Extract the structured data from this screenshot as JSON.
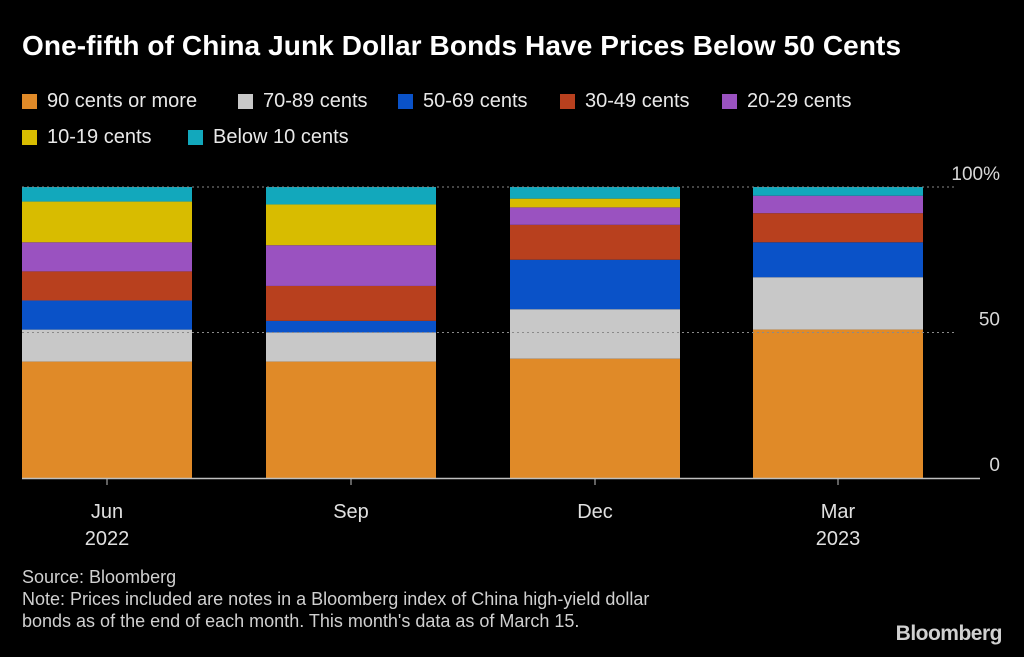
{
  "chart_data": {
    "type": "bar",
    "stacked": true,
    "title": "One-fifth of China Junk Dollar Bonds Have Prices Below 50 Cents",
    "categories": [
      "Jun",
      "Sep",
      "Dec",
      "Mar"
    ],
    "category_sublabels": [
      "2022",
      "",
      "",
      "2023"
    ],
    "series": [
      {
        "name": "90 cents or more",
        "color": "#e08a28",
        "values": [
          40,
          40,
          41,
          51
        ]
      },
      {
        "name": "70-89 cents",
        "color": "#c8c8c8",
        "values": [
          11,
          10,
          17,
          18
        ]
      },
      {
        "name": "50-69 cents",
        "color": "#0a52c8",
        "values": [
          10,
          4,
          17,
          12
        ]
      },
      {
        "name": "30-49 cents",
        "color": "#b8401e",
        "values": [
          10,
          12,
          12,
          10
        ]
      },
      {
        "name": "20-29 cents",
        "color": "#9a52c0",
        "values": [
          10,
          14,
          6,
          6
        ]
      },
      {
        "name": "10-19 cents",
        "color": "#d8bc00",
        "values": [
          14,
          14,
          3,
          0
        ]
      },
      {
        "name": "Below 10 cents",
        "color": "#12a8bc",
        "values": [
          5,
          6,
          4,
          3
        ]
      }
    ],
    "xlabel": "",
    "ylabel": "",
    "ylim": [
      0,
      100
    ],
    "yticks": [
      {
        "value": 0,
        "label": "0"
      },
      {
        "value": 50,
        "label": "50"
      },
      {
        "value": 100,
        "label": "100%"
      }
    ],
    "gridlines_at": [
      50,
      100
    ],
    "legend_position": "top-left"
  },
  "footer": {
    "source": "Source: Bloomberg",
    "note_line1": "Note: Prices included are notes in a Bloomberg index of China high-yield dollar",
    "note_line2": "bonds as of the end of each month. This month's data as of March 15."
  },
  "brand": "Bloomberg"
}
